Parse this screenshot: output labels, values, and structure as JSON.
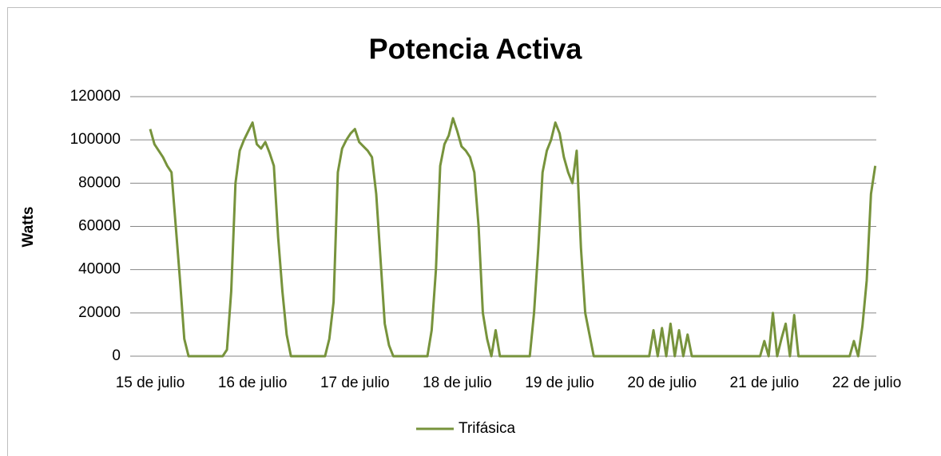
{
  "chart_data": {
    "type": "line",
    "title": "Potencia Activa",
    "y_label": "Watts",
    "categories": [
      "15 de julio",
      null,
      null,
      null,
      null,
      null,
      null,
      null,
      null,
      null,
      null,
      null,
      null,
      null,
      null,
      null,
      null,
      null,
      null,
      null,
      null,
      null,
      null,
      null,
      "16 de julio",
      null,
      null,
      null,
      null,
      null,
      null,
      null,
      null,
      null,
      null,
      null,
      null,
      null,
      null,
      null,
      null,
      null,
      null,
      null,
      null,
      null,
      null,
      null,
      "17 de julio",
      null,
      null,
      null,
      null,
      null,
      null,
      null,
      null,
      null,
      null,
      null,
      null,
      null,
      null,
      null,
      null,
      null,
      null,
      null,
      null,
      null,
      null,
      null,
      "18 de julio",
      null,
      null,
      null,
      null,
      null,
      null,
      null,
      null,
      null,
      null,
      null,
      null,
      null,
      null,
      null,
      null,
      null,
      null,
      null,
      null,
      null,
      null,
      null,
      "19 de julio",
      null,
      null,
      null,
      null,
      null,
      null,
      null,
      null,
      null,
      null,
      null,
      null,
      null,
      null,
      null,
      null,
      null,
      null,
      null,
      null,
      null,
      null,
      null,
      "20 de julio",
      null,
      null,
      null,
      null,
      null,
      null,
      null,
      null,
      null,
      null,
      null,
      null,
      null,
      null,
      null,
      null,
      null,
      null,
      null,
      null,
      null,
      null,
      null,
      "21 de julio",
      null,
      null,
      null,
      null,
      null,
      null,
      null,
      null,
      null,
      null,
      null,
      null,
      null,
      null,
      null,
      null,
      null,
      null,
      null,
      null,
      null,
      null,
      null,
      "22 de julio",
      null,
      null
    ],
    "series": [
      {
        "name": "Trifásica",
        "color": "#77933c",
        "values": [
          105000,
          98000,
          95000,
          92000,
          88000,
          85000,
          60000,
          35000,
          8000,
          0,
          0,
          0,
          0,
          0,
          0,
          0,
          0,
          0,
          3000,
          30000,
          80000,
          95000,
          100000,
          104000,
          108000,
          98000,
          96000,
          99000,
          94000,
          88000,
          55000,
          30000,
          10000,
          0,
          0,
          0,
          0,
          0,
          0,
          0,
          0,
          0,
          8000,
          25000,
          85000,
          96000,
          100000,
          103000,
          105000,
          99000,
          97000,
          95000,
          92000,
          75000,
          45000,
          15000,
          5000,
          0,
          0,
          0,
          0,
          0,
          0,
          0,
          0,
          0,
          12000,
          40000,
          88000,
          98000,
          102000,
          110000,
          104000,
          97000,
          95000,
          92000,
          85000,
          60000,
          20000,
          8000,
          0,
          12000,
          0,
          0,
          0,
          0,
          0,
          0,
          0,
          0,
          20000,
          50000,
          85000,
          95000,
          100000,
          108000,
          103000,
          92000,
          85000,
          80000,
          95000,
          50000,
          20000,
          10000,
          0,
          0,
          0,
          0,
          0,
          0,
          0,
          0,
          0,
          0,
          0,
          0,
          0,
          0,
          12000,
          0,
          13000,
          0,
          15000,
          0,
          12000,
          0,
          10000,
          0,
          0,
          0,
          0,
          0,
          0,
          0,
          0,
          0,
          0,
          0,
          0,
          0,
          0,
          0,
          0,
          0,
          7000,
          0,
          20000,
          0,
          8000,
          15000,
          0,
          19000,
          0,
          0,
          0,
          0,
          0,
          0,
          0,
          0,
          0,
          0,
          0,
          0,
          0,
          7000,
          0,
          14000,
          35000,
          75000,
          88000
        ]
      }
    ],
    "ylim": [
      0,
      120000
    ],
    "yticks": [
      0,
      20000,
      40000,
      60000,
      80000,
      100000,
      120000
    ],
    "grid": true,
    "legend": "bottom"
  }
}
